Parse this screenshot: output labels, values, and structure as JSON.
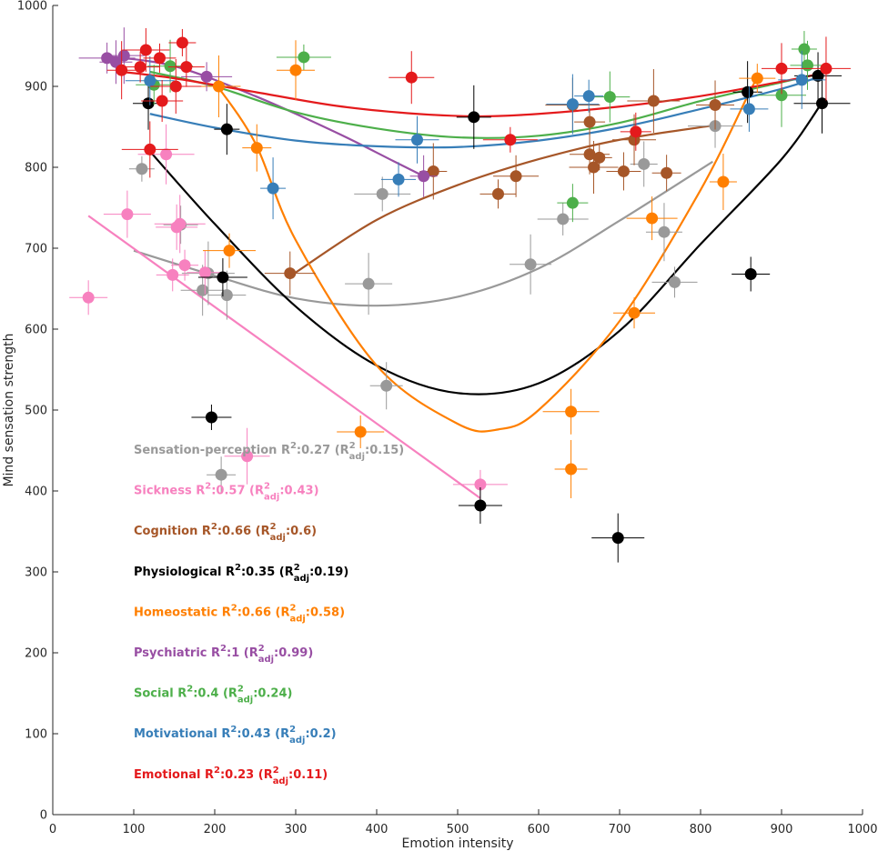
{
  "chart_data": {
    "type": "scatter",
    "xlabel": "Emotion intensity",
    "ylabel": "Mind sensation strength",
    "xlim": [
      0,
      1000
    ],
    "ylim": [
      0,
      1000
    ],
    "xticks": [
      0,
      100,
      200,
      300,
      400,
      500,
      600,
      700,
      800,
      900,
      1000
    ],
    "yticks": [
      0,
      100,
      200,
      300,
      400,
      500,
      600,
      700,
      800,
      900,
      1000
    ],
    "grid": false,
    "legend_placement": "lower-left",
    "series": [
      {
        "name": "Sensation-perception",
        "color": "#999999",
        "fit_label": "Sensation-perception",
        "r2": "0.27",
        "r2adj": "0.15",
        "points": [
          [
            110,
            798
          ],
          [
            158,
            729
          ],
          [
            185,
            648
          ],
          [
            192,
            669
          ],
          [
            208,
            420
          ],
          [
            215,
            642
          ],
          [
            390,
            656
          ],
          [
            407,
            767
          ],
          [
            412,
            530
          ],
          [
            590,
            680
          ],
          [
            630,
            736
          ],
          [
            730,
            804
          ],
          [
            755,
            720
          ],
          [
            768,
            658
          ],
          [
            818,
            851
          ]
        ],
        "curve": [
          [
            100,
            697
          ],
          [
            200,
            666
          ],
          [
            300,
            638
          ],
          [
            400,
            629
          ],
          [
            500,
            640
          ],
          [
            600,
            675
          ],
          [
            700,
            734
          ],
          [
            815,
            807
          ]
        ]
      },
      {
        "name": "Sickness",
        "color": "#f781bf",
        "fit_label": "Sickness",
        "r2": "0.57",
        "r2adj": "0.43",
        "points": [
          [
            44,
            639
          ],
          [
            92,
            742
          ],
          [
            140,
            816
          ],
          [
            148,
            667
          ],
          [
            153,
            726
          ],
          [
            157,
            730
          ],
          [
            163,
            679
          ],
          [
            188,
            670
          ],
          [
            240,
            443
          ],
          [
            528,
            408
          ]
        ],
        "curve": [
          [
            44,
            740
          ],
          [
            528,
            391
          ]
        ]
      },
      {
        "name": "Cognition",
        "color": "#a65628",
        "fit_label": "Cognition",
        "r2": "0.66",
        "r2adj": "0.6",
        "points": [
          [
            293,
            669
          ],
          [
            470,
            795
          ],
          [
            550,
            767
          ],
          [
            572,
            789
          ],
          [
            642,
            877
          ],
          [
            663,
            856
          ],
          [
            663,
            816
          ],
          [
            668,
            800
          ],
          [
            675,
            812
          ],
          [
            705,
            795
          ],
          [
            718,
            834
          ],
          [
            742,
            882
          ],
          [
            758,
            793
          ],
          [
            818,
            877
          ]
        ],
        "curve": [
          [
            300,
            670
          ],
          [
            400,
            735
          ],
          [
            500,
            778
          ],
          [
            600,
            810
          ],
          [
            700,
            834
          ],
          [
            818,
            852
          ]
        ]
      },
      {
        "name": "Physiological",
        "color": "#000000",
        "fit_label": "Physiological",
        "r2": "0.35",
        "r2adj": "0.19",
        "points": [
          [
            118,
            879
          ],
          [
            196,
            491
          ],
          [
            210,
            664
          ],
          [
            215,
            847
          ],
          [
            520,
            862
          ],
          [
            528,
            382
          ],
          [
            698,
            342
          ],
          [
            858,
            893
          ],
          [
            862,
            668
          ],
          [
            945,
            913
          ],
          [
            950,
            879
          ]
        ],
        "curve": [
          [
            118,
            822
          ],
          [
            200,
            730
          ],
          [
            300,
            628
          ],
          [
            400,
            555
          ],
          [
            500,
            521
          ],
          [
            600,
            533
          ],
          [
            700,
            598
          ],
          [
            800,
            705
          ],
          [
            900,
            810
          ],
          [
            950,
            880
          ]
        ]
      },
      {
        "name": "Homeostatic",
        "color": "#ff7f00",
        "fit_label": "Homeostatic",
        "r2": "0.66",
        "r2adj": "0.58",
        "points": [
          [
            205,
            900
          ],
          [
            218,
            697
          ],
          [
            252,
            824
          ],
          [
            300,
            920
          ],
          [
            380,
            473
          ],
          [
            640,
            498
          ],
          [
            640,
            427
          ],
          [
            718,
            620
          ],
          [
            740,
            737
          ],
          [
            828,
            782
          ],
          [
            870,
            910
          ]
        ],
        "curve": [
          [
            200,
            905
          ],
          [
            250,
            830
          ],
          [
            300,
            710
          ],
          [
            400,
            555
          ],
          [
            500,
            483
          ],
          [
            550,
            476
          ],
          [
            600,
            500
          ],
          [
            700,
            610
          ],
          [
            800,
            772
          ],
          [
            860,
            892
          ],
          [
            870,
            910
          ]
        ]
      },
      {
        "name": "Psychiatric",
        "color": "#984ea3",
        "fit_label": "Psychiatric",
        "r2": "1",
        "r2adj": "0.99",
        "points": [
          [
            67,
            935
          ],
          [
            78,
            930
          ],
          [
            88,
            938
          ],
          [
            190,
            912
          ],
          [
            458,
            789
          ]
        ],
        "curve": [
          [
            67,
            937
          ],
          [
            150,
            925
          ],
          [
            250,
            888
          ],
          [
            350,
            843
          ],
          [
            420,
            808
          ],
          [
            458,
            789
          ]
        ]
      },
      {
        "name": "Social",
        "color": "#4daf4a",
        "fit_label": "Social",
        "r2": "0.4",
        "r2adj": "0.24",
        "points": [
          [
            125,
            902
          ],
          [
            145,
            925
          ],
          [
            310,
            936
          ],
          [
            642,
            756
          ],
          [
            688,
            887
          ],
          [
            900,
            889
          ],
          [
            928,
            946
          ],
          [
            932,
            926
          ]
        ],
        "curve": [
          [
            120,
            918
          ],
          [
            200,
            900
          ],
          [
            300,
            868
          ],
          [
            400,
            848
          ],
          [
            500,
            837
          ],
          [
            600,
            839
          ],
          [
            700,
            855
          ],
          [
            800,
            882
          ],
          [
            900,
            905
          ],
          [
            950,
            916
          ]
        ]
      },
      {
        "name": "Motivational",
        "color": "#377eb8",
        "fit_label": "Motivational",
        "r2": "0.43",
        "r2adj": "0.2",
        "points": [
          [
            120,
            907
          ],
          [
            272,
            774
          ],
          [
            427,
            785
          ],
          [
            450,
            834
          ],
          [
            642,
            878
          ],
          [
            662,
            888
          ],
          [
            860,
            872
          ],
          [
            925,
            908
          ]
        ],
        "curve": [
          [
            120,
            866
          ],
          [
            200,
            849
          ],
          [
            300,
            833
          ],
          [
            400,
            826
          ],
          [
            500,
            825
          ],
          [
            600,
            833
          ],
          [
            700,
            849
          ],
          [
            800,
            872
          ],
          [
            900,
            897
          ],
          [
            950,
            913
          ]
        ]
      },
      {
        "name": "Emotional",
        "color": "#e41a1c",
        "fit_label": "Emotional",
        "r2": "0.23",
        "r2adj": "0.11",
        "points": [
          [
            85,
            920
          ],
          [
            108,
            924
          ],
          [
            115,
            945
          ],
          [
            120,
            822
          ],
          [
            132,
            935
          ],
          [
            135,
            882
          ],
          [
            152,
            900
          ],
          [
            160,
            954
          ],
          [
            165,
            924
          ],
          [
            443,
            911
          ],
          [
            565,
            834
          ],
          [
            720,
            844
          ],
          [
            900,
            922
          ],
          [
            955,
            922
          ]
        ],
        "curve": [
          [
            85,
            918
          ],
          [
            150,
            910
          ],
          [
            250,
            893
          ],
          [
            350,
            876
          ],
          [
            450,
            866
          ],
          [
            530,
            863
          ],
          [
            600,
            866
          ],
          [
            700,
            875
          ],
          [
            800,
            888
          ],
          [
            900,
            906
          ],
          [
            955,
            917
          ]
        ]
      }
    ]
  }
}
